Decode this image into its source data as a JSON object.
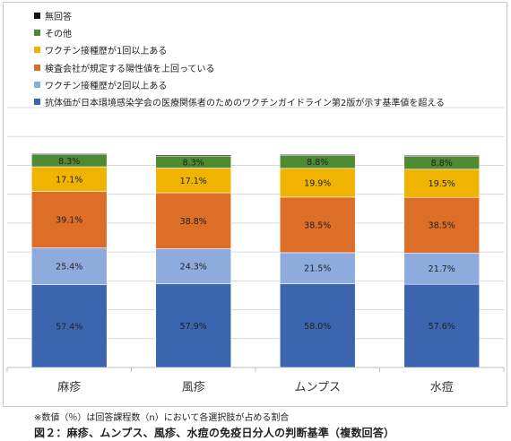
{
  "chart_data": {
    "type": "bar",
    "stacked": true,
    "categories": [
      "麻疹",
      "風疹",
      "ムンプス",
      "水痘"
    ],
    "series": [
      {
        "name": "抗体価が日本環境感染学会の医療関係者のためのワクチンガイドライン第2版が示す基準値を超える",
        "color": "#3c65b0",
        "values": [
          57.4,
          57.9,
          58.0,
          57.6
        ],
        "labels": [
          "57.4%",
          "57.9%",
          "58.0%",
          "57.6%"
        ]
      },
      {
        "name": "ワクチン接種歴が2回以上ある",
        "color": "#8eabde",
        "values": [
          25.4,
          24.3,
          21.5,
          21.7
        ],
        "labels": [
          "25.4%",
          "24.3%",
          "21.5%",
          "21.7%"
        ]
      },
      {
        "name": "検査会社が規定する陽性値を上回っている",
        "color": "#dc6e28",
        "values": [
          39.1,
          38.8,
          38.5,
          38.5
        ],
        "labels": [
          "39.1%",
          "38.8%",
          "38.5%",
          "38.5%"
        ]
      },
      {
        "name": "ワクチン接種歴が1回以上ある",
        "color": "#f0b400",
        "values": [
          17.1,
          17.1,
          19.9,
          19.5
        ],
        "labels": [
          "17.1%",
          "17.1%",
          "19.9%",
          "19.5%"
        ]
      },
      {
        "name": "その他",
        "color": "#4e8a32",
        "values": [
          8.3,
          8.3,
          8.8,
          8.8
        ],
        "labels": [
          "8.3%",
          "8.3%",
          "8.8%",
          "8.8%"
        ]
      },
      {
        "name": "無回答",
        "color": "#111111",
        "values": [
          0.8,
          0.8,
          0.8,
          0.8
        ],
        "labels": [
          "",
          "",
          "",
          ""
        ]
      }
    ],
    "ylim": [
      0,
      180
    ],
    "y_tick_step": 20,
    "grid": true,
    "legend_position": "top-left",
    "colors": {
      "grid": "#d9d9d9",
      "axis": "#bfbfbf",
      "label": "#222222",
      "category": "#333333"
    }
  },
  "footnote": "※数値（％）は回答課程数（n）において各選択肢が占める割合",
  "caption": "図２：麻疹、ムンプス、風疹、水痘の免疫日分人の判断基準（複数回答）"
}
